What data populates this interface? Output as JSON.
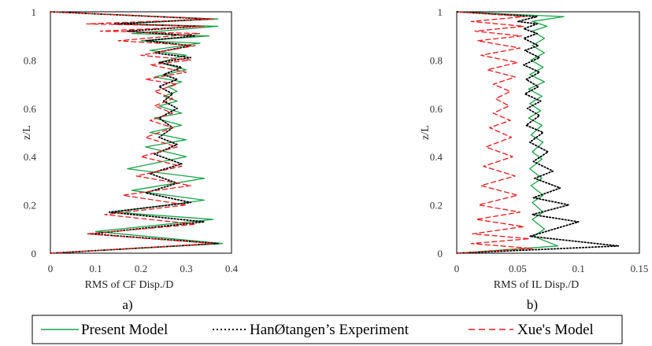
{
  "colors": {
    "present": "#1aa34a",
    "han": "#000000",
    "xue": "#e8191c"
  },
  "legend": {
    "present_label": "Present Model",
    "han_label": "HanØtangen’s Experiment",
    "xue_label": "Xue's Model"
  },
  "chart_data": [
    {
      "type": "line",
      "panel_label": "a)",
      "xlabel": "RMS of CF Disp./D",
      "ylabel": "z/L",
      "xlim": [
        0,
        0.4
      ],
      "ylim": [
        0,
        1
      ],
      "xticks": [
        "0",
        "0.1",
        "0.2",
        "0.3",
        "0.4"
      ],
      "yticks": [
        "0",
        "0.2",
        "0.4",
        "0.6",
        "0.8",
        "1"
      ],
      "series": [
        {
          "name": "Present Model",
          "style": "solid",
          "x": [
            0.0,
            0.38,
            0.1,
            0.36,
            0.14,
            0.34,
            0.18,
            0.34,
            0.17,
            0.3,
            0.21,
            0.3,
            0.22,
            0.29,
            0.23,
            0.29,
            0.24,
            0.28,
            0.25,
            0.28,
            0.26,
            0.29,
            0.23,
            0.3,
            0.24,
            0.3,
            0.22,
            0.33,
            0.2,
            0.35,
            0.18,
            0.37,
            0.15,
            0.37,
            0.0
          ],
          "y": [
            0.0,
            0.04,
            0.09,
            0.14,
            0.17,
            0.22,
            0.26,
            0.31,
            0.35,
            0.4,
            0.44,
            0.47,
            0.5,
            0.53,
            0.56,
            0.58,
            0.61,
            0.63,
            0.65,
            0.67,
            0.69,
            0.71,
            0.73,
            0.76,
            0.79,
            0.82,
            0.84,
            0.87,
            0.88,
            0.9,
            0.91,
            0.94,
            0.95,
            0.97,
            1.0
          ]
        },
        {
          "name": "HanØtangen’s Experiment",
          "style": "dotted",
          "x": [
            0.0,
            0.37,
            0.09,
            0.34,
            0.13,
            0.31,
            0.21,
            0.28,
            0.22,
            0.29,
            0.23,
            0.28,
            0.24,
            0.27,
            0.24,
            0.28,
            0.25,
            0.27,
            0.24,
            0.28,
            0.25,
            0.29,
            0.24,
            0.31,
            0.23,
            0.31,
            0.21,
            0.32,
            0.17,
            0.33,
            0.14,
            0.35,
            0.0
          ],
          "y": [
            0.0,
            0.04,
            0.08,
            0.13,
            0.17,
            0.21,
            0.25,
            0.29,
            0.33,
            0.37,
            0.41,
            0.45,
            0.48,
            0.52,
            0.56,
            0.6,
            0.63,
            0.66,
            0.69,
            0.72,
            0.74,
            0.77,
            0.79,
            0.81,
            0.83,
            0.86,
            0.88,
            0.9,
            0.92,
            0.94,
            0.95,
            0.97,
            1.0
          ]
        },
        {
          "name": "Xue's Model",
          "style": "dashed",
          "x": [
            0.0,
            0.36,
            0.08,
            0.32,
            0.12,
            0.3,
            0.16,
            0.31,
            0.19,
            0.29,
            0.2,
            0.28,
            0.21,
            0.27,
            0.22,
            0.27,
            0.23,
            0.27,
            0.23,
            0.28,
            0.21,
            0.3,
            0.22,
            0.31,
            0.2,
            0.32,
            0.15,
            0.33,
            0.11,
            0.34,
            0.08,
            0.36,
            0.0
          ],
          "y": [
            0.0,
            0.04,
            0.08,
            0.12,
            0.16,
            0.2,
            0.24,
            0.28,
            0.32,
            0.36,
            0.4,
            0.44,
            0.48,
            0.52,
            0.55,
            0.58,
            0.61,
            0.64,
            0.67,
            0.7,
            0.72,
            0.75,
            0.78,
            0.8,
            0.82,
            0.86,
            0.88,
            0.91,
            0.92,
            0.94,
            0.95,
            0.97,
            1.0
          ]
        }
      ]
    },
    {
      "type": "line",
      "panel_label": "b)",
      "xlabel": "RMS of IL Disp./D",
      "ylabel": "z/L",
      "xlim": [
        0,
        0.15
      ],
      "ylim": [
        0,
        1
      ],
      "xticks": [
        "0",
        "0.05",
        "0.1",
        "0.15"
      ],
      "yticks": [
        "0",
        "0.2",
        "0.4",
        "0.6",
        "0.8",
        "1"
      ],
      "series": [
        {
          "name": "Present Model",
          "style": "solid",
          "x": [
            0.0,
            0.083,
            0.063,
            0.072,
            0.062,
            0.071,
            0.062,
            0.071,
            0.061,
            0.07,
            0.06,
            0.07,
            0.062,
            0.071,
            0.061,
            0.07,
            0.059,
            0.069,
            0.06,
            0.07,
            0.059,
            0.072,
            0.06,
            0.071,
            0.061,
            0.072,
            0.062,
            0.072,
            0.062,
            0.074,
            0.062,
            0.088,
            0.0
          ],
          "y": [
            0.0,
            0.03,
            0.07,
            0.1,
            0.14,
            0.17,
            0.21,
            0.24,
            0.28,
            0.31,
            0.35,
            0.39,
            0.42,
            0.46,
            0.49,
            0.53,
            0.56,
            0.59,
            0.62,
            0.65,
            0.68,
            0.71,
            0.74,
            0.77,
            0.8,
            0.83,
            0.86,
            0.89,
            0.92,
            0.94,
            0.96,
            0.98,
            1.0
          ]
        },
        {
          "name": "HanØtangen’s Experiment",
          "style": "dotted",
          "x": [
            0.0,
            0.133,
            0.06,
            0.1,
            0.062,
            0.092,
            0.063,
            0.085,
            0.064,
            0.079,
            0.063,
            0.075,
            0.06,
            0.071,
            0.057,
            0.068,
            0.058,
            0.069,
            0.056,
            0.067,
            0.057,
            0.068,
            0.055,
            0.068,
            0.056,
            0.067,
            0.055,
            0.066,
            0.055,
            0.066,
            0.05,
            0.066,
            0.0
          ],
          "y": [
            0.0,
            0.03,
            0.07,
            0.13,
            0.16,
            0.2,
            0.23,
            0.27,
            0.31,
            0.34,
            0.38,
            0.42,
            0.46,
            0.5,
            0.53,
            0.57,
            0.6,
            0.63,
            0.66,
            0.69,
            0.72,
            0.75,
            0.78,
            0.81,
            0.84,
            0.86,
            0.89,
            0.91,
            0.93,
            0.95,
            0.96,
            0.98,
            1.0
          ]
        },
        {
          "name": "Xue's Model",
          "style": "dashed",
          "x": [
            0.0,
            0.062,
            0.012,
            0.06,
            0.013,
            0.055,
            0.016,
            0.052,
            0.018,
            0.05,
            0.02,
            0.048,
            0.022,
            0.046,
            0.024,
            0.045,
            0.027,
            0.044,
            0.03,
            0.043,
            0.032,
            0.044,
            0.03,
            0.048,
            0.025,
            0.05,
            0.02,
            0.052,
            0.017,
            0.053,
            0.015,
            0.055,
            0.012,
            0.056,
            0.0
          ],
          "y": [
            0.0,
            0.02,
            0.04,
            0.06,
            0.08,
            0.11,
            0.14,
            0.17,
            0.2,
            0.24,
            0.28,
            0.32,
            0.36,
            0.4,
            0.44,
            0.48,
            0.52,
            0.55,
            0.58,
            0.61,
            0.64,
            0.67,
            0.7,
            0.73,
            0.76,
            0.79,
            0.82,
            0.85,
            0.88,
            0.9,
            0.92,
            0.94,
            0.96,
            0.98,
            1.0
          ]
        }
      ]
    }
  ]
}
